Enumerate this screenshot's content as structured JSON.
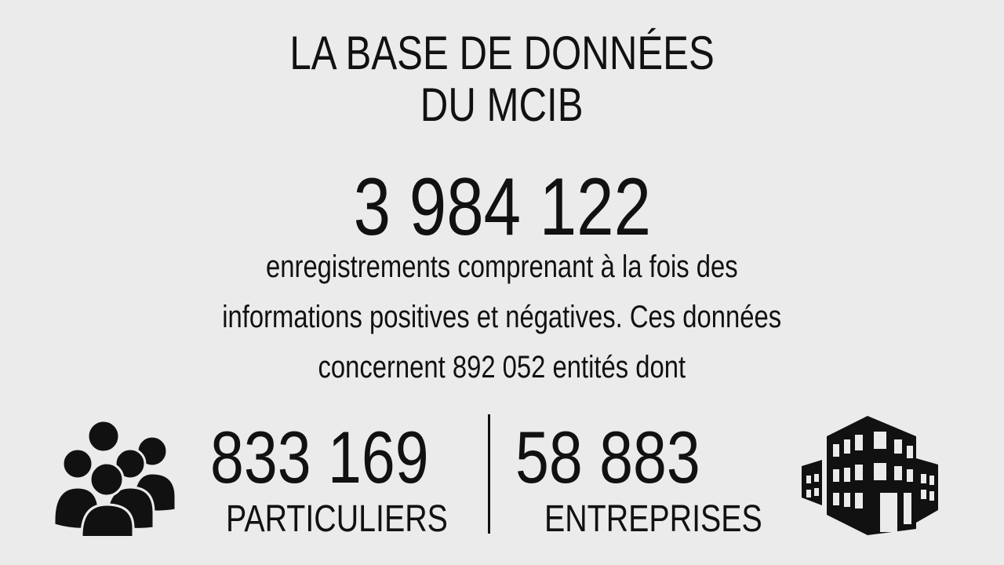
{
  "title": {
    "line1": "LA BASE DE DONNÉES",
    "line2": "DU MCIB"
  },
  "total_records": "3 984 122",
  "description": {
    "line1": "enregistrements comprenant à la fois des",
    "line2": "informations positives et négatives. Ces données",
    "line3": "concernent 892 052 entités dont"
  },
  "individuals": {
    "value": "833 169",
    "label": "PARTICULIERS",
    "icon": "people-group-icon"
  },
  "companies": {
    "value": "58 883",
    "label": "ENTREPRISES",
    "icon": "building-icon"
  },
  "colors": {
    "background": "#ebebeb",
    "text": "#111111"
  }
}
